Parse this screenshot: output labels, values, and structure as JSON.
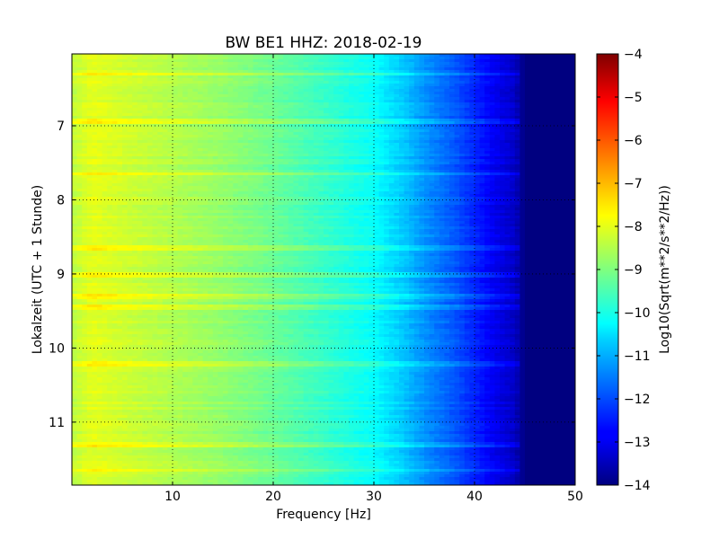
{
  "chart_data": {
    "type": "heatmap",
    "title": "BW BE1 HHZ: 2018-02-19",
    "xlabel": "Frequency [Hz]",
    "ylabel": "Lokalzeit (UTC + 1 Stunde)",
    "xlim": [
      0,
      50
    ],
    "ylim": [
      11.85,
      6.03
    ],
    "x_ticks": [
      10,
      20,
      30,
      40,
      50
    ],
    "y_ticks": [
      7,
      8,
      9,
      10,
      11
    ],
    "grid": true,
    "colorbar": {
      "label": "Log10(Sqrt(m**2/s**2/Hz))",
      "range": [
        -14,
        -4
      ],
      "ticks": [
        -14,
        -13,
        -12,
        -11,
        -10,
        -9,
        -8,
        -7,
        -6,
        -5,
        -4
      ],
      "colormap": "jet"
    },
    "profile": {
      "freq": [
        0,
        2,
        5,
        10,
        15,
        20,
        25,
        30,
        33,
        35,
        38,
        40,
        42,
        44,
        45,
        50
      ],
      "value": [
        -8.4,
        -8.0,
        -8.2,
        -8.5,
        -8.8,
        -9.2,
        -9.7,
        -10.2,
        -10.8,
        -11.3,
        -11.9,
        -12.4,
        -12.9,
        -13.3,
        -14.0,
        -14.0
      ]
    },
    "bright_bands_hours": [
      6.3,
      6.95,
      7.65,
      8.65,
      9.0,
      9.3,
      9.45,
      10.2,
      11.3,
      11.65
    ]
  }
}
